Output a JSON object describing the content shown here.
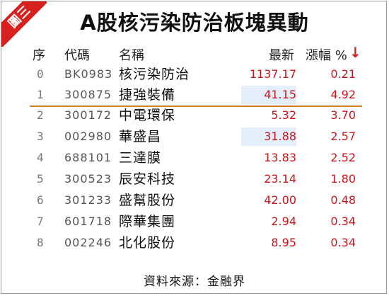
{
  "corner_tag": "圖三",
  "title": "A股核污染防治板塊異動",
  "headers": {
    "index": "序",
    "code": "代碼",
    "name": "名稱",
    "price": "最新",
    "change": "漲幅 %"
  },
  "sort_icon": "down-arrow-icon",
  "rows": [
    {
      "index": "0",
      "code": "BK0983",
      "name": "核污染防治",
      "price": "1137.17",
      "change": "0.21"
    },
    {
      "index": "1",
      "code": "300875",
      "name": "捷強裝備",
      "price": "41.15",
      "change": "4.92"
    },
    {
      "index": "2",
      "code": "300172",
      "name": "中電環保",
      "price": "5.32",
      "change": "3.70"
    },
    {
      "index": "3",
      "code": "002980",
      "name": "華盛昌",
      "price": "31.88",
      "change": "2.57"
    },
    {
      "index": "4",
      "code": "688101",
      "name": "三達膜",
      "price": "13.83",
      "change": "2.52"
    },
    {
      "index": "5",
      "code": "300523",
      "name": "辰安科技",
      "price": "23.14",
      "change": "1.80"
    },
    {
      "index": "6",
      "code": "301233",
      "name": "盛幫股份",
      "price": "42.00",
      "change": "0.48"
    },
    {
      "index": "7",
      "code": "601718",
      "name": "際華集團",
      "price": "2.94",
      "change": "0.34"
    },
    {
      "index": "8",
      "code": "002246",
      "name": "北化股份",
      "price": "8.95",
      "change": "0.34"
    }
  ],
  "highlighted_rows": [
    1,
    3
  ],
  "colors": {
    "accent_red": "#d8201e",
    "value_red": "#c8161d",
    "divider_orange": "#d27b2a",
    "highlight_blue": "#e3eefa"
  },
  "footer": "資料來源：金融界"
}
